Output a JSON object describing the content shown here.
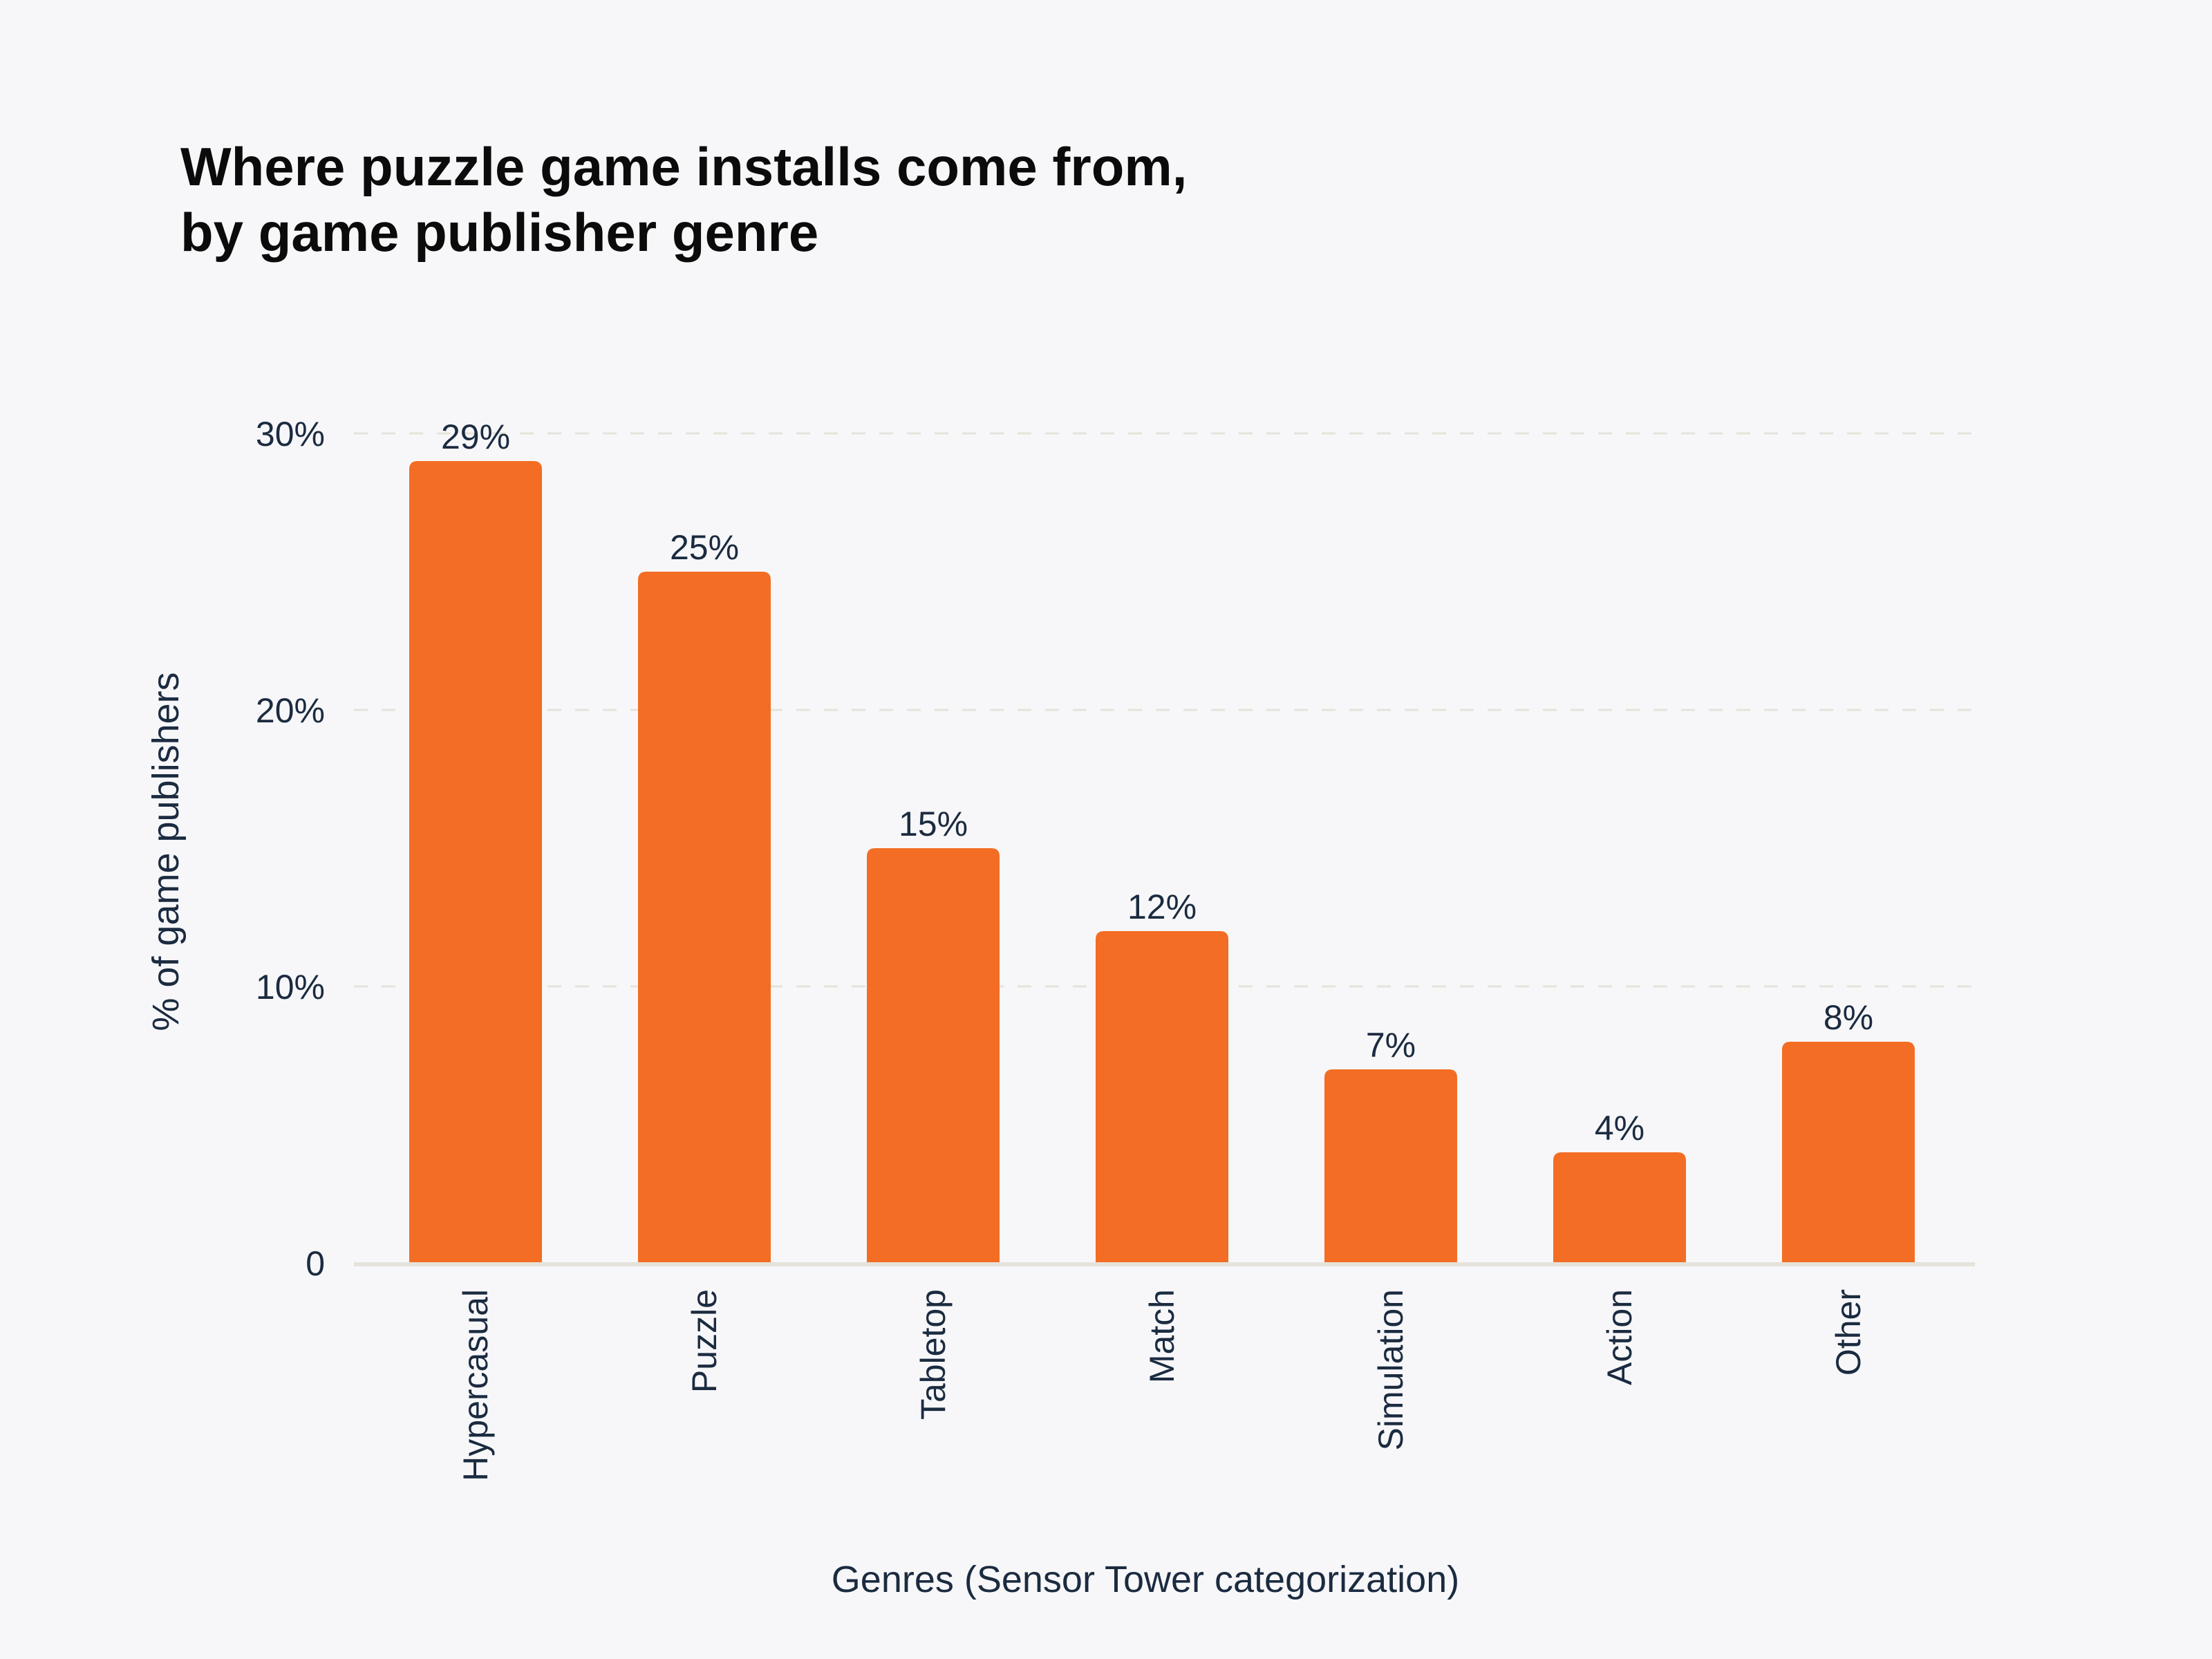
{
  "chart_data": {
    "type": "bar",
    "title": [
      "Where puzzle game installs come from,",
      "by game publisher genre"
    ],
    "xlabel": "Genres (Sensor Tower categorization)",
    "ylabel": "% of game publishers",
    "categories": [
      "Hypercasual",
      "Puzzle",
      "Tabletop",
      "Match",
      "Simulation",
      "Action",
      "Other"
    ],
    "values": [
      29,
      25,
      15,
      12,
      7,
      4,
      8
    ],
    "data_labels": [
      "29%",
      "25%",
      "15%",
      "12%",
      "7%",
      "4%",
      "8%"
    ],
    "ylim": [
      0,
      30
    ],
    "yticks": [
      0,
      10,
      20,
      30
    ],
    "ytick_labels": [
      "0",
      "10%",
      "20%",
      "30%"
    ],
    "grid": true,
    "legend": "none",
    "colors": {
      "bar": "#f36d24",
      "text": "#1b2b40",
      "grid": "#e5e3da",
      "background": "#f7f7f9"
    }
  }
}
